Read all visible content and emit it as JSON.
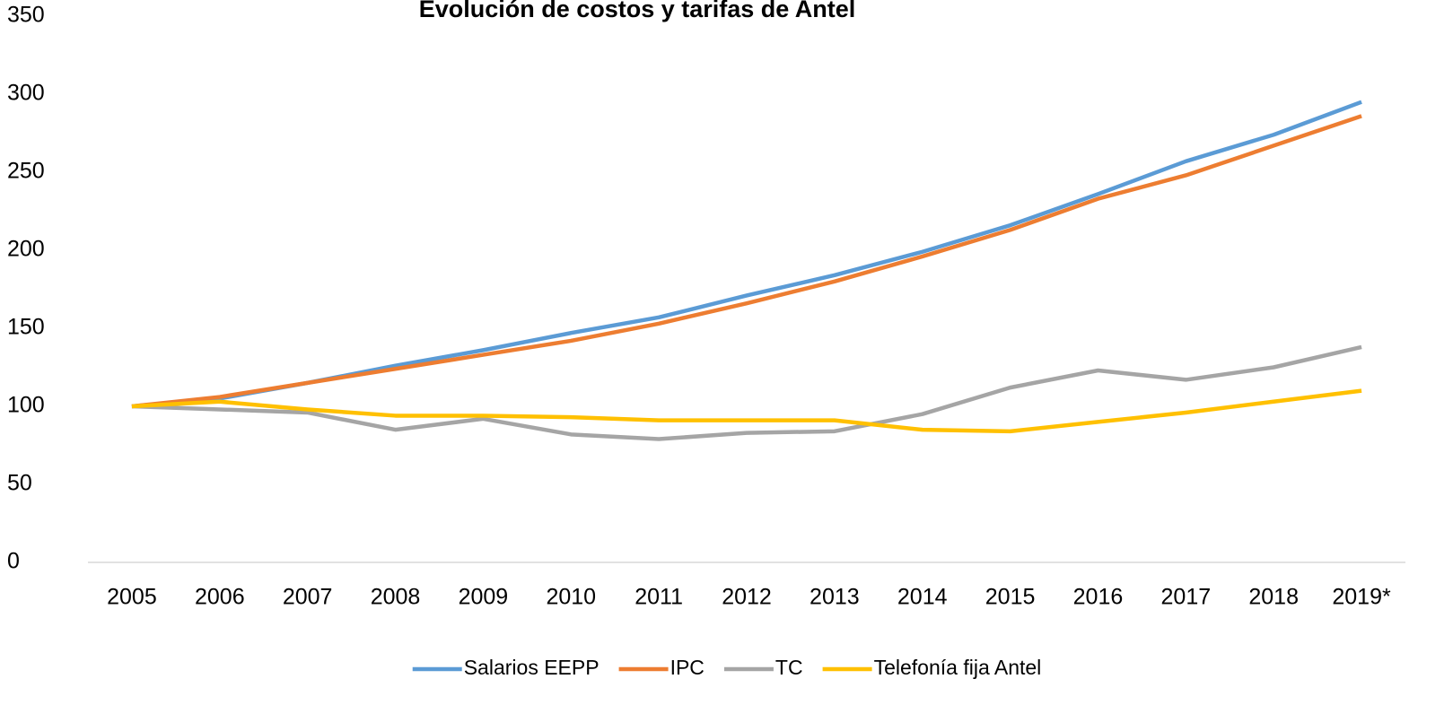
{
  "chart_data": {
    "type": "line",
    "title": "Evolución de costos y tarifas de Antel",
    "categories": [
      "2005",
      "2006",
      "2007",
      "2008",
      "2009",
      "2010",
      "2011",
      "2012",
      "2013",
      "2014",
      "2015",
      "2016",
      "2017",
      "2018",
      "2019*"
    ],
    "series": [
      {
        "name": "Salarios EEPP",
        "color": "#5b9bd5",
        "values": [
          100,
          105,
          115,
          126,
          136,
          147,
          157,
          171,
          184,
          199,
          216,
          236,
          257,
          274,
          295
        ]
      },
      {
        "name": "IPC",
        "color": "#ed7d31",
        "values": [
          100,
          106,
          115,
          124,
          133,
          142,
          153,
          166,
          180,
          196,
          213,
          233,
          248,
          267,
          286
        ]
      },
      {
        "name": "TC",
        "color": "#a5a5a5",
        "values": [
          100,
          98,
          96,
          85,
          92,
          82,
          79,
          83,
          84,
          95,
          112,
          123,
          117,
          125,
          138
        ]
      },
      {
        "name": "Telefonía fija Antel",
        "color": "#ffc000",
        "values": [
          100,
          103,
          98,
          94,
          94,
          93,
          91,
          91,
          91,
          85,
          84,
          90,
          96,
          103,
          110
        ]
      }
    ],
    "ylim": [
      0,
      350
    ],
    "yticks": [
      0,
      50,
      100,
      150,
      200,
      250,
      300,
      350
    ],
    "grid": false,
    "legend": "bottom"
  }
}
